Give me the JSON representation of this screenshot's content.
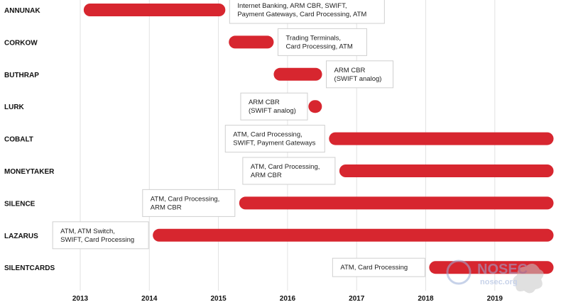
{
  "chart_data": {
    "type": "bar",
    "orientation": "horizontal-timeline",
    "bar_color": "#d7262f",
    "grid": true,
    "x_axis": {
      "ticks": [
        "2013",
        "2014",
        "2015",
        "2016",
        "2017",
        "2018",
        "2019"
      ],
      "range": [
        2013,
        2020
      ]
    },
    "series": [
      {
        "name": "ANNUNAK",
        "start": 2013.05,
        "end": 2015.1,
        "note": [
          "Internet Banking, ARM CBR, SWIFT,",
          "Payment Gateways, Card Processing, ATM"
        ],
        "note_side": "right"
      },
      {
        "name": "CORKOW",
        "start": 2015.15,
        "end": 2015.8,
        "note": [
          "Trading Terminals,",
          "Card Processing, ATM"
        ],
        "note_side": "right"
      },
      {
        "name": "BUTHRAP",
        "start": 2015.8,
        "end": 2016.5,
        "note": [
          "ARM CBR",
          "(SWIFT analog)"
        ],
        "note_side": "right"
      },
      {
        "name": "LURK",
        "start": 2016.35,
        "end": 2016.45,
        "note": [
          "ARM CBR",
          "(SWIFT analog)"
        ],
        "note_side": "left"
      },
      {
        "name": "COBALT",
        "start": 2016.6,
        "end": 2019.85,
        "note": [
          "ATM, Card Processing,",
          "SWIFT, Payment Gateways"
        ],
        "note_side": "left"
      },
      {
        "name": "MONEYTAKER",
        "start": 2016.75,
        "end": 2019.85,
        "note": [
          "ATM, Card Processing,",
          "ARM CBR"
        ],
        "note_side": "left"
      },
      {
        "name": "SILENCE",
        "start": 2015.3,
        "end": 2019.85,
        "note": [
          "ATM, Card Processing,",
          "ARM CBR"
        ],
        "note_side": "left"
      },
      {
        "name": "LAZARUS",
        "start": 2014.05,
        "end": 2019.85,
        "note": [
          "ATM, ATM Switch,",
          "SWIFT, Card Processing"
        ],
        "note_side": "left"
      },
      {
        "name": "SILENTCARDS",
        "start": 2018.05,
        "end": 2019.85,
        "note": [
          "ATM,  Card Processing"
        ],
        "note_side": "left"
      }
    ]
  },
  "watermark": {
    "brand": "NOSEC",
    "site": "nosec.org",
    "color": "#9aaed8"
  }
}
